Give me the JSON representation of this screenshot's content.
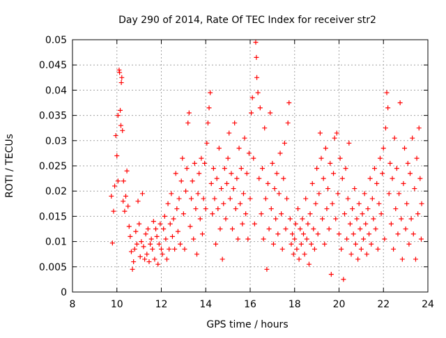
{
  "chart_data": {
    "type": "scatter",
    "title": "Day 290 of 2014, Rate Of TEC Index for receiver str2",
    "xlabel": "GPS time / hours",
    "ylabel": "ROTI / TECUs",
    "xlim": [
      8,
      24
    ],
    "ylim": [
      0,
      0.05
    ],
    "x_ticks": [
      8,
      10,
      12,
      14,
      16,
      18,
      20,
      22,
      24
    ],
    "x_tick_labels": [
      "8",
      "10",
      "12",
      "14",
      "16",
      "18",
      "20",
      "22",
      "24"
    ],
    "y_ticks": [
      0,
      0.005,
      0.01,
      0.015,
      0.02,
      0.025,
      0.03,
      0.035,
      0.04,
      0.045,
      0.05
    ],
    "y_tick_labels": [
      "0",
      "0.005",
      "0.01",
      "0.015",
      "0.02",
      "0.025",
      "0.03",
      "0.035",
      "0.04",
      "0.045",
      "0.05"
    ],
    "grid": true,
    "marker": "+",
    "series": [
      {
        "name": "ROTI",
        "color": "#ff0000",
        "points": [
          [
            9.75,
            0.019
          ],
          [
            9.8,
            0.0097
          ],
          [
            9.85,
            0.016
          ],
          [
            9.9,
            0.021
          ],
          [
            9.95,
            0.031
          ],
          [
            10.0,
            0.027
          ],
          [
            10.05,
            0.022
          ],
          [
            10.05,
            0.035
          ],
          [
            10.1,
            0.044
          ],
          [
            10.12,
            0.0435
          ],
          [
            10.15,
            0.036
          ],
          [
            10.18,
            0.033
          ],
          [
            10.2,
            0.0415
          ],
          [
            10.22,
            0.0425
          ],
          [
            10.25,
            0.032
          ],
          [
            10.28,
            0.018
          ],
          [
            10.3,
            0.022
          ],
          [
            10.35,
            0.016
          ],
          [
            10.4,
            0.019
          ],
          [
            10.45,
            0.024
          ],
          [
            10.5,
            0.017
          ],
          [
            10.55,
            0.013
          ],
          [
            10.6,
            0.011
          ],
          [
            10.65,
            0.008
          ],
          [
            10.7,
            0.0045
          ],
          [
            10.75,
            0.006
          ],
          [
            10.8,
            0.0085
          ],
          [
            10.85,
            0.012
          ],
          [
            10.9,
            0.0095
          ],
          [
            10.95,
            0.018
          ],
          [
            11.0,
            0.0135
          ],
          [
            11.05,
            0.007
          ],
          [
            11.1,
            0.01
          ],
          [
            11.15,
            0.0195
          ],
          [
            11.2,
            0.009
          ],
          [
            11.25,
            0.0065
          ],
          [
            11.3,
            0.0115
          ],
          [
            11.35,
            0.0075
          ],
          [
            11.4,
            0.0125
          ],
          [
            11.45,
            0.006
          ],
          [
            11.5,
            0.0095
          ],
          [
            11.55,
            0.0105
          ],
          [
            11.6,
            0.0085
          ],
          [
            11.65,
            0.014
          ],
          [
            11.7,
            0.0065
          ],
          [
            11.75,
            0.0125
          ],
          [
            11.8,
            0.011
          ],
          [
            11.85,
            0.0055
          ],
          [
            11.9,
            0.0095
          ],
          [
            11.95,
            0.0135
          ],
          [
            12.0,
            0.0085
          ],
          [
            12.05,
            0.0075
          ],
          [
            12.1,
            0.0125
          ],
          [
            12.15,
            0.015
          ],
          [
            12.2,
            0.0105
          ],
          [
            12.25,
            0.0065
          ],
          [
            12.3,
            0.0175
          ],
          [
            12.35,
            0.0085
          ],
          [
            12.4,
            0.0135
          ],
          [
            12.45,
            0.0195
          ],
          [
            12.5,
            0.011
          ],
          [
            12.55,
            0.0145
          ],
          [
            12.6,
            0.0085
          ],
          [
            12.65,
            0.0235
          ],
          [
            12.7,
            0.0165
          ],
          [
            12.75,
            0.012
          ],
          [
            12.8,
            0.0185
          ],
          [
            12.85,
            0.0095
          ],
          [
            12.9,
            0.022
          ],
          [
            12.95,
            0.0265
          ],
          [
            13.0,
            0.0155
          ],
          [
            13.05,
            0.0085
          ],
          [
            13.1,
            0.02
          ],
          [
            13.15,
            0.0245
          ],
          [
            13.2,
            0.0335
          ],
          [
            13.25,
            0.0355
          ],
          [
            13.3,
            0.013
          ],
          [
            13.35,
            0.0185
          ],
          [
            13.4,
            0.022
          ],
          [
            13.45,
            0.0105
          ],
          [
            13.5,
            0.0255
          ],
          [
            13.55,
            0.0165
          ],
          [
            13.6,
            0.0075
          ],
          [
            13.65,
            0.0195
          ],
          [
            13.7,
            0.0235
          ],
          [
            13.75,
            0.0145
          ],
          [
            13.8,
            0.0265
          ],
          [
            13.85,
            0.0115
          ],
          [
            13.9,
            0.0185
          ],
          [
            13.95,
            0.0255
          ],
          [
            14.0,
            0.0165
          ],
          [
            14.05,
            0.0295
          ],
          [
            14.1,
            0.0335
          ],
          [
            14.15,
            0.0365
          ],
          [
            14.2,
            0.0395
          ],
          [
            14.25,
            0.0215
          ],
          [
            14.3,
            0.0155
          ],
          [
            14.35,
            0.0245
          ],
          [
            14.4,
            0.0185
          ],
          [
            14.45,
            0.0095
          ],
          [
            14.5,
            0.0225
          ],
          [
            14.55,
            0.0165
          ],
          [
            14.6,
            0.0285
          ],
          [
            14.65,
            0.0125
          ],
          [
            14.7,
            0.0205
          ],
          [
            14.75,
            0.0065
          ],
          [
            14.8,
            0.0175
          ],
          [
            14.85,
            0.0245
          ],
          [
            14.9,
            0.0145
          ],
          [
            14.95,
            0.0215
          ],
          [
            15.0,
            0.0265
          ],
          [
            15.05,
            0.0315
          ],
          [
            15.1,
            0.0185
          ],
          [
            15.15,
            0.0235
          ],
          [
            15.2,
            0.0125
          ],
          [
            15.25,
            0.0205
          ],
          [
            15.3,
            0.0335
          ],
          [
            15.35,
            0.0165
          ],
          [
            15.4,
            0.0225
          ],
          [
            15.45,
            0.0105
          ],
          [
            15.5,
            0.0285
          ],
          [
            15.55,
            0.0175
          ],
          [
            15.6,
            0.0245
          ],
          [
            15.65,
            0.0135
          ],
          [
            15.7,
            0.0195
          ],
          [
            15.75,
            0.0305
          ],
          [
            15.8,
            0.0155
          ],
          [
            15.85,
            0.0235
          ],
          [
            15.9,
            0.0105
          ],
          [
            15.95,
            0.0275
          ],
          [
            16.0,
            0.0185
          ],
          [
            16.05,
            0.0355
          ],
          [
            16.1,
            0.0385
          ],
          [
            16.15,
            0.0265
          ],
          [
            16.2,
            0.0135
          ],
          [
            16.25,
            0.0495
          ],
          [
            16.28,
            0.0465
          ],
          [
            16.3,
            0.0425
          ],
          [
            16.35,
            0.0395
          ],
          [
            16.4,
            0.0225
          ],
          [
            16.45,
            0.0365
          ],
          [
            16.5,
            0.0155
          ],
          [
            16.55,
            0.0245
          ],
          [
            16.6,
            0.0105
          ],
          [
            16.65,
            0.0325
          ],
          [
            16.7,
            0.0185
          ],
          [
            16.75,
            0.0045
          ],
          [
            16.8,
            0.0215
          ],
          [
            16.85,
            0.0125
          ],
          [
            16.9,
            0.0355
          ],
          [
            16.95,
            0.0165
          ],
          [
            17.0,
            0.0255
          ],
          [
            17.05,
            0.0095
          ],
          [
            17.1,
            0.0205
          ],
          [
            17.15,
            0.0145
          ],
          [
            17.2,
            0.0235
          ],
          [
            17.25,
            0.0115
          ],
          [
            17.3,
            0.0195
          ],
          [
            17.35,
            0.0275
          ],
          [
            17.4,
            0.0155
          ],
          [
            17.45,
            0.0085
          ],
          [
            17.5,
            0.0225
          ],
          [
            17.55,
            0.0295
          ],
          [
            17.6,
            0.0125
          ],
          [
            17.65,
            0.0185
          ],
          [
            17.7,
            0.0335
          ],
          [
            17.75,
            0.0375
          ],
          [
            17.8,
            0.0145
          ],
          [
            17.85,
            0.0095
          ],
          [
            17.9,
            0.0115
          ],
          [
            17.95,
            0.0075
          ],
          [
            18.0,
            0.0105
          ],
          [
            18.05,
            0.0135
          ],
          [
            18.1,
            0.0085
          ],
          [
            18.15,
            0.0165
          ],
          [
            18.2,
            0.0065
          ],
          [
            18.25,
            0.0125
          ],
          [
            18.3,
            0.0095
          ],
          [
            18.35,
            0.0145
          ],
          [
            18.4,
            0.0115
          ],
          [
            18.45,
            0.0075
          ],
          [
            18.5,
            0.0185
          ],
          [
            18.55,
            0.0105
          ],
          [
            18.6,
            0.0135
          ],
          [
            18.65,
            0.0055
          ],
          [
            18.7,
            0.0155
          ],
          [
            18.75,
            0.0095
          ],
          [
            18.8,
            0.0215
          ],
          [
            18.85,
            0.0125
          ],
          [
            18.9,
            0.0085
          ],
          [
            18.95,
            0.0175
          ],
          [
            19.0,
            0.0245
          ],
          [
            19.05,
            0.0115
          ],
          [
            19.1,
            0.0195
          ],
          [
            19.15,
            0.0315
          ],
          [
            19.2,
            0.0265
          ],
          [
            19.25,
            0.0145
          ],
          [
            19.3,
            0.0225
          ],
          [
            19.35,
            0.0095
          ],
          [
            19.4,
            0.0285
          ],
          [
            19.45,
            0.0165
          ],
          [
            19.5,
            0.0205
          ],
          [
            19.55,
            0.0125
          ],
          [
            19.6,
            0.0255
          ],
          [
            19.65,
            0.0035
          ],
          [
            19.7,
            0.0175
          ],
          [
            19.75,
            0.0235
          ],
          [
            19.8,
            0.0305
          ],
          [
            19.85,
            0.0145
          ],
          [
            19.9,
            0.0315
          ],
          [
            19.95,
            0.0195
          ],
          [
            20.0,
            0.0115
          ],
          [
            20.05,
            0.0265
          ],
          [
            20.1,
            0.0085
          ],
          [
            20.15,
            0.0225
          ],
          [
            20.2,
            0.0025
          ],
          [
            20.25,
            0.0155
          ],
          [
            20.3,
            0.0245
          ],
          [
            20.35,
            0.0105
          ],
          [
            20.4,
            0.0185
          ],
          [
            20.45,
            0.0295
          ],
          [
            20.5,
            0.0135
          ],
          [
            20.55,
            0.0075
          ],
          [
            20.6,
            0.0165
          ],
          [
            20.65,
            0.0115
          ],
          [
            20.7,
            0.0205
          ],
          [
            20.75,
            0.0095
          ],
          [
            20.8,
            0.0145
          ],
          [
            20.85,
            0.0065
          ],
          [
            20.9,
            0.0175
          ],
          [
            20.95,
            0.0125
          ],
          [
            21.0,
            0.0085
          ],
          [
            21.05,
            0.0155
          ],
          [
            21.1,
            0.0105
          ],
          [
            21.15,
            0.0195
          ],
          [
            21.2,
            0.0135
          ],
          [
            21.25,
            0.0075
          ],
          [
            21.3,
            0.0165
          ],
          [
            21.35,
            0.0115
          ],
          [
            21.4,
            0.0225
          ],
          [
            21.45,
            0.0095
          ],
          [
            21.5,
            0.0185
          ],
          [
            21.55,
            0.0145
          ],
          [
            21.6,
            0.0245
          ],
          [
            21.65,
            0.0125
          ],
          [
            21.7,
            0.0215
          ],
          [
            21.75,
            0.0085
          ],
          [
            21.8,
            0.0175
          ],
          [
            21.85,
            0.0265
          ],
          [
            21.9,
            0.0155
          ],
          [
            21.95,
            0.0235
          ],
          [
            22.0,
            0.0285
          ],
          [
            22.05,
            0.0105
          ],
          [
            22.1,
            0.0325
          ],
          [
            22.15,
            0.0395
          ],
          [
            22.2,
            0.0365
          ],
          [
            22.25,
            0.0195
          ],
          [
            22.3,
            0.0255
          ],
          [
            22.35,
            0.0135
          ],
          [
            22.4,
            0.0225
          ],
          [
            22.45,
            0.0085
          ],
          [
            22.5,
            0.0305
          ],
          [
            22.55,
            0.0165
          ],
          [
            22.6,
            0.0245
          ],
          [
            22.65,
            0.0115
          ],
          [
            22.7,
            0.0195
          ],
          [
            22.75,
            0.0375
          ],
          [
            22.8,
            0.0145
          ],
          [
            22.85,
            0.0065
          ],
          [
            22.9,
            0.0215
          ],
          [
            22.95,
            0.0285
          ],
          [
            23.0,
            0.0125
          ],
          [
            23.05,
            0.0175
          ],
          [
            23.1,
            0.0255
          ],
          [
            23.15,
            0.0095
          ],
          [
            23.2,
            0.0235
          ],
          [
            23.25,
            0.0145
          ],
          [
            23.3,
            0.0305
          ],
          [
            23.35,
            0.0115
          ],
          [
            23.4,
            0.0205
          ],
          [
            23.45,
            0.0065
          ],
          [
            23.5,
            0.0265
          ],
          [
            23.55,
            0.0155
          ],
          [
            23.6,
            0.0325
          ],
          [
            23.65,
            0.0225
          ],
          [
            23.7,
            0.0105
          ],
          [
            23.72,
            0.0175
          ]
        ]
      }
    ]
  }
}
